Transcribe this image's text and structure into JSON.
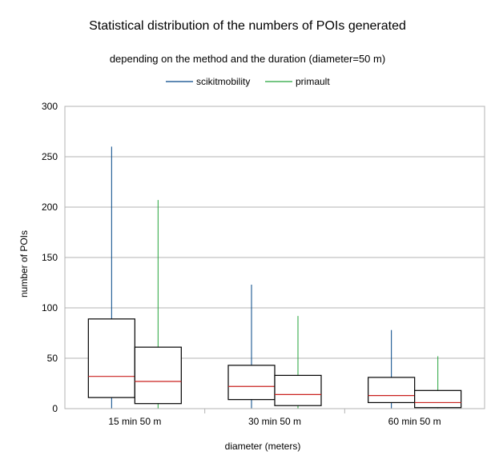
{
  "chart_data": {
    "type": "boxplot",
    "title": "Statistical distribution of the numbers of POIs generated",
    "subtitle": "depending on the method and the duration (diameter=50 m)",
    "xlabel": "diameter (meters)",
    "ylabel": "number of POIs",
    "ylim": [
      0,
      300
    ],
    "yticks": [
      0,
      50,
      100,
      150,
      200,
      250,
      300
    ],
    "grid": true,
    "legend_position": "top-center",
    "categories": [
      "15 min 50 m",
      "30 min 50 m",
      "60 min 50 m"
    ],
    "series": [
      {
        "name": "scikitmobility",
        "color": "#004586",
        "boxes": [
          {
            "min": 0,
            "q1": 11,
            "median": 32,
            "q3": 89,
            "max": 260
          },
          {
            "min": 0,
            "q1": 9,
            "median": 22,
            "q3": 43,
            "max": 123
          },
          {
            "min": 0,
            "q1": 6,
            "median": 13,
            "q3": 31,
            "max": 78
          }
        ]
      },
      {
        "name": "primault",
        "color": "#23a33a",
        "boxes": [
          {
            "min": 0,
            "q1": 5,
            "median": 27,
            "q3": 61,
            "max": 207
          },
          {
            "min": 0,
            "q1": 3,
            "median": 14,
            "q3": 33,
            "max": 92
          },
          {
            "min": 0,
            "q1": 1,
            "median": 6,
            "q3": 18,
            "max": 52
          }
        ]
      }
    ],
    "colors": {
      "grid": "#b3b3b3",
      "median": "#c9211e",
      "box": "#000000"
    }
  }
}
